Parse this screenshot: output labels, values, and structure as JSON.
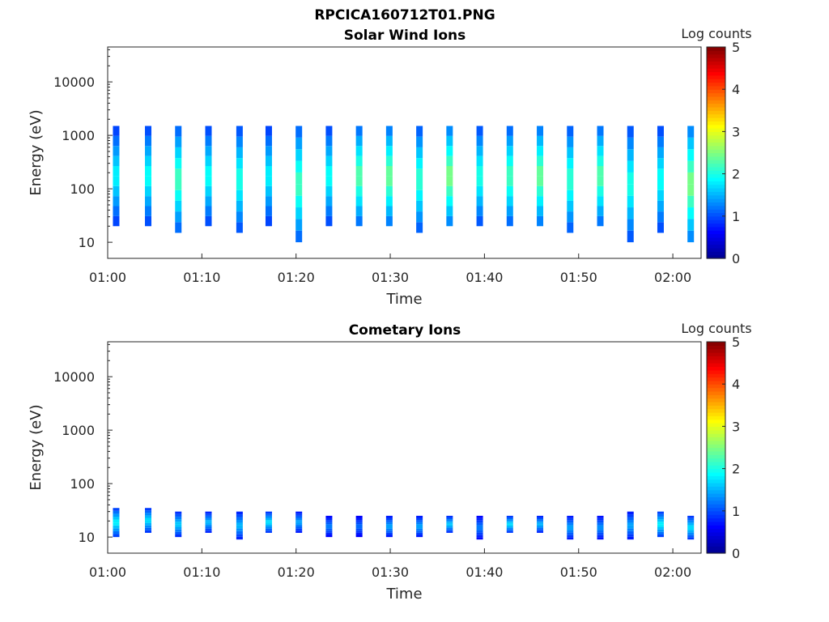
{
  "figure_title": "RPCICA160712T01.PNG",
  "colormap": [
    "#00008f",
    "#0000ff",
    "#0080ff",
    "#00ffff",
    "#80ff80",
    "#ffff00",
    "#ff8000",
    "#ff0000",
    "#800000"
  ],
  "chart_data": [
    {
      "type": "heatmap",
      "title": "Solar Wind Ions",
      "xlabel": "Time",
      "ylabel": "Energy (eV)",
      "xlim_minutes": [
        0,
        63
      ],
      "ylim": [
        5,
        45000
      ],
      "yscale": "log",
      "xticks": [
        "01:00",
        "01:10",
        "01:20",
        "01:30",
        "01:40",
        "01:50",
        "02:00"
      ],
      "yticks": [
        "10",
        "100",
        "1000",
        "10000"
      ],
      "colorbar": {
        "label": "Log counts",
        "min": 0,
        "max": 5,
        "ticks": [
          "0",
          "1",
          "2",
          "3",
          "4",
          "5"
        ]
      },
      "bursts": [
        {
          "t": 0.9,
          "low": 20,
          "high": 1500,
          "peak_log_counts": 1.9
        },
        {
          "t": 4.3,
          "low": 20,
          "high": 1500,
          "peak_log_counts": 2.0
        },
        {
          "t": 7.5,
          "low": 15,
          "high": 1500,
          "peak_log_counts": 2.3
        },
        {
          "t": 10.7,
          "low": 20,
          "high": 1500,
          "peak_log_counts": 2.0
        },
        {
          "t": 14.0,
          "low": 15,
          "high": 1500,
          "peak_log_counts": 2.1
        },
        {
          "t": 17.1,
          "low": 20,
          "high": 1500,
          "peak_log_counts": 1.9
        },
        {
          "t": 20.3,
          "low": 10,
          "high": 1500,
          "peak_log_counts": 2.3
        },
        {
          "t": 23.5,
          "low": 20,
          "high": 1500,
          "peak_log_counts": 2.0
        },
        {
          "t": 26.7,
          "low": 20,
          "high": 1500,
          "peak_log_counts": 2.4
        },
        {
          "t": 29.9,
          "low": 20,
          "high": 1500,
          "peak_log_counts": 2.5
        },
        {
          "t": 33.1,
          "low": 15,
          "high": 1500,
          "peak_log_counts": 2.2
        },
        {
          "t": 36.3,
          "low": 20,
          "high": 1500,
          "peak_log_counts": 2.6
        },
        {
          "t": 39.5,
          "low": 20,
          "high": 1500,
          "peak_log_counts": 2.1
        },
        {
          "t": 42.7,
          "low": 20,
          "high": 1500,
          "peak_log_counts": 2.3
        },
        {
          "t": 45.9,
          "low": 20,
          "high": 1500,
          "peak_log_counts": 2.5
        },
        {
          "t": 49.1,
          "low": 15,
          "high": 1500,
          "peak_log_counts": 2.2
        },
        {
          "t": 52.3,
          "low": 20,
          "high": 1500,
          "peak_log_counts": 2.4
        },
        {
          "t": 55.5,
          "low": 10,
          "high": 1500,
          "peak_log_counts": 2.1
        },
        {
          "t": 58.7,
          "low": 15,
          "high": 1500,
          "peak_log_counts": 2.0
        },
        {
          "t": 61.9,
          "low": 10,
          "high": 1500,
          "peak_log_counts": 2.6
        }
      ]
    },
    {
      "type": "heatmap",
      "title": "Cometary Ions",
      "xlabel": "Time",
      "ylabel": "Energy (eV)",
      "xlim_minutes": [
        0,
        63
      ],
      "ylim": [
        5,
        45000
      ],
      "yscale": "log",
      "xticks": [
        "01:00",
        "01:10",
        "01:20",
        "01:30",
        "01:40",
        "01:50",
        "02:00"
      ],
      "yticks": [
        "10",
        "100",
        "1000",
        "10000"
      ],
      "colorbar": {
        "label": "Log counts",
        "min": 0,
        "max": 5,
        "ticks": [
          "0",
          "1",
          "2",
          "3",
          "4",
          "5"
        ]
      },
      "bursts": [
        {
          "t": 0.9,
          "low": 10,
          "high": 35,
          "peak_log_counts": 1.9
        },
        {
          "t": 4.3,
          "low": 12,
          "high": 35,
          "peak_log_counts": 1.8
        },
        {
          "t": 7.5,
          "low": 10,
          "high": 30,
          "peak_log_counts": 1.7
        },
        {
          "t": 10.7,
          "low": 12,
          "high": 30,
          "peak_log_counts": 1.6
        },
        {
          "t": 14.0,
          "low": 9,
          "high": 30,
          "peak_log_counts": 1.6
        },
        {
          "t": 17.1,
          "low": 12,
          "high": 30,
          "peak_log_counts": 1.8
        },
        {
          "t": 20.3,
          "low": 12,
          "high": 30,
          "peak_log_counts": 1.5
        },
        {
          "t": 23.5,
          "low": 10,
          "high": 25,
          "peak_log_counts": 1.3
        },
        {
          "t": 26.7,
          "low": 10,
          "high": 25,
          "peak_log_counts": 1.2
        },
        {
          "t": 29.9,
          "low": 10,
          "high": 25,
          "peak_log_counts": 1.5
        },
        {
          "t": 33.1,
          "low": 10,
          "high": 25,
          "peak_log_counts": 1.5
        },
        {
          "t": 36.3,
          "low": 12,
          "high": 25,
          "peak_log_counts": 1.7
        },
        {
          "t": 39.5,
          "low": 9,
          "high": 25,
          "peak_log_counts": 1.3
        },
        {
          "t": 42.7,
          "low": 12,
          "high": 25,
          "peak_log_counts": 1.8
        },
        {
          "t": 45.9,
          "low": 12,
          "high": 25,
          "peak_log_counts": 1.6
        },
        {
          "t": 49.1,
          "low": 9,
          "high": 25,
          "peak_log_counts": 1.5
        },
        {
          "t": 52.3,
          "low": 9,
          "high": 25,
          "peak_log_counts": 1.4
        },
        {
          "t": 55.5,
          "low": 9,
          "high": 30,
          "peak_log_counts": 1.5
        },
        {
          "t": 58.7,
          "low": 10,
          "high": 30,
          "peak_log_counts": 1.9
        },
        {
          "t": 61.9,
          "low": 9,
          "high": 25,
          "peak_log_counts": 1.8
        }
      ]
    }
  ]
}
